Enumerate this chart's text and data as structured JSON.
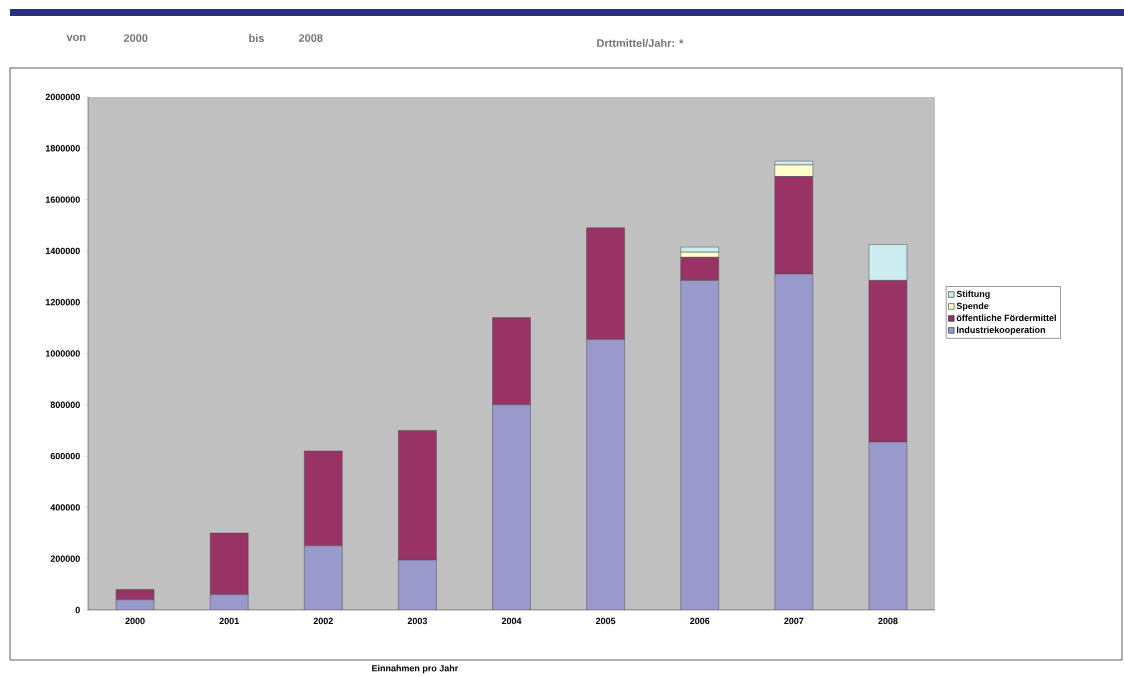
{
  "chart_data": {
    "type": "bar",
    "stacked": true,
    "title": "Drttmittel/Jahr: *",
    "xlabel": "Einnahmen pro Jahr",
    "annotations": [
      "von",
      "2000",
      "bis",
      "2008"
    ],
    "categories": [
      "2000",
      "2001",
      "2002",
      "2003",
      "2004",
      "2005",
      "2006",
      "2007",
      "2008"
    ],
    "series": [
      {
        "name": "Industriekooperation",
        "color": "#9999cc",
        "values": [
          40000,
          60000,
          250000,
          195000,
          800000,
          1055000,
          1285000,
          1310000,
          655000
        ]
      },
      {
        "name": "öffentliche Fördermittel",
        "color": "#993366",
        "values": [
          40000,
          240000,
          370000,
          505000,
          340000,
          435000,
          90000,
          380000,
          630000
        ]
      },
      {
        "name": "Spende",
        "color": "#ffffcc",
        "values": [
          0,
          0,
          0,
          0,
          0,
          0,
          20000,
          45000,
          0
        ]
      },
      {
        "name": "Stiftung",
        "color": "#ccecf0",
        "values": [
          0,
          0,
          0,
          0,
          0,
          0,
          20000,
          15000,
          140000
        ]
      }
    ],
    "ylim": [
      0,
      2000000
    ],
    "yticks": [
      0,
      200000,
      400000,
      600000,
      800000,
      1000000,
      1200000,
      1400000,
      1600000,
      1800000,
      2000000
    ],
    "legend": "right"
  }
}
